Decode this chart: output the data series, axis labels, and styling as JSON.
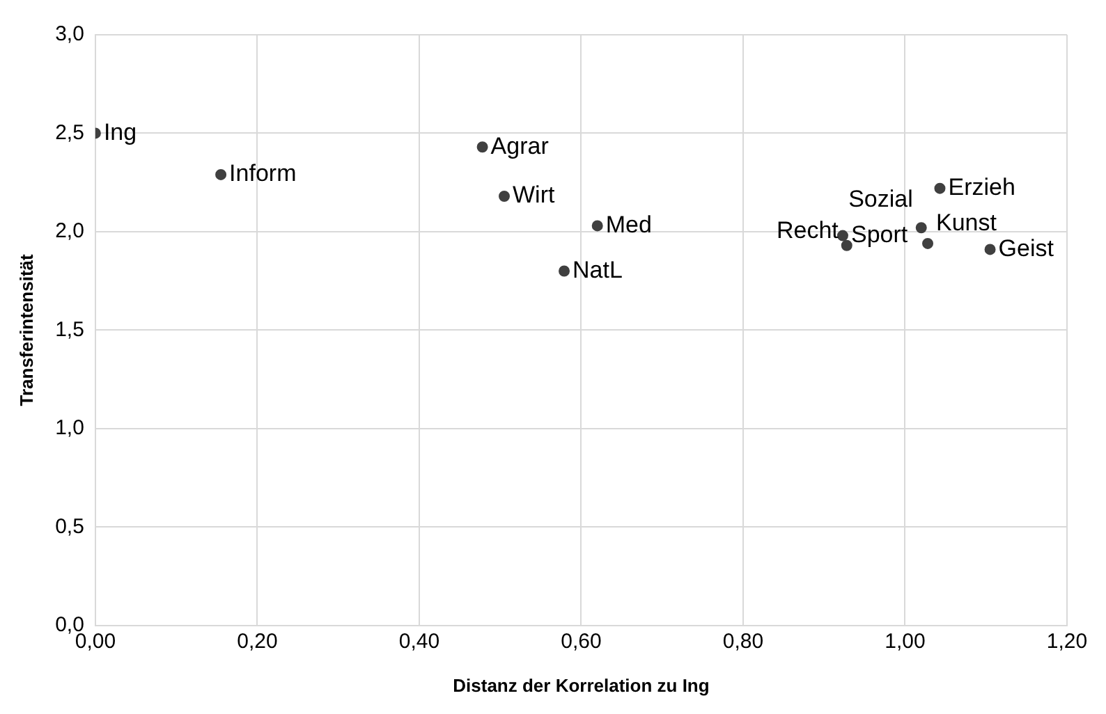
{
  "chart_data": {
    "type": "scatter",
    "xlabel": "Distanz der Korrelation zu Ing",
    "ylabel": "Transferintensität",
    "series": [
      {
        "color": "#404040",
        "x": [
          0.0,
          0.155,
          0.478,
          0.505,
          0.62,
          0.579,
          0.923,
          0.928,
          1.043,
          1.02,
          1.028,
          1.105
        ],
        "values": [
          2.5,
          2.29,
          2.43,
          2.18,
          2.03,
          1.8,
          1.98,
          1.93,
          2.22,
          2.02,
          1.94,
          1.91
        ]
      }
    ],
    "annotations": [
      {
        "text": "Ing",
        "x": 0.0,
        "y": 2.5
      },
      {
        "text": "Inform",
        "x": 0.155,
        "y": 2.29
      },
      {
        "text": "Agrar",
        "x": 0.478,
        "y": 2.43
      },
      {
        "text": "Wirt",
        "x": 0.505,
        "y": 2.18
      },
      {
        "text": "Med",
        "x": 0.62,
        "y": 2.03
      },
      {
        "text": "NatL",
        "x": 0.579,
        "y": 1.8
      },
      {
        "text": "Sport",
        "x": 0.923,
        "y": 1.98
      },
      {
        "text": "Recht",
        "x": 0.928,
        "y": 1.93
      },
      {
        "text": "Erzieh",
        "x": 1.043,
        "y": 2.22
      },
      {
        "text": "Sozial",
        "x": 1.02,
        "y": 2.02
      },
      {
        "text": "Kunst",
        "x": 1.028,
        "y": 1.94
      },
      {
        "text": "Geist",
        "x": 1.105,
        "y": 1.91
      }
    ],
    "xlim": [
      0,
      1.2
    ],
    "xticks": [
      {
        "value": 0,
        "label": "0,00"
      },
      {
        "value": 0.2,
        "label": "0,20"
      },
      {
        "value": 0.4,
        "label": "0,40"
      },
      {
        "value": 0.6,
        "label": "0,60"
      },
      {
        "value": 0.8,
        "label": "0,80"
      },
      {
        "value": 1.0,
        "label": "1,00"
      },
      {
        "value": 1.2,
        "label": "1,20"
      }
    ],
    "ylim": [
      0,
      3
    ],
    "yticks": [
      {
        "value": 0,
        "label": "0,0"
      },
      {
        "value": 0.5,
        "label": "0,5"
      },
      {
        "value": 1.0,
        "label": "1,0"
      },
      {
        "value": 1.5,
        "label": "1,5"
      },
      {
        "value": 2.0,
        "label": "2,0"
      },
      {
        "value": 2.5,
        "label": "2,5"
      },
      {
        "value": 3.0,
        "label": "3,0"
      }
    ],
    "grid": true,
    "marker": "circle"
  }
}
